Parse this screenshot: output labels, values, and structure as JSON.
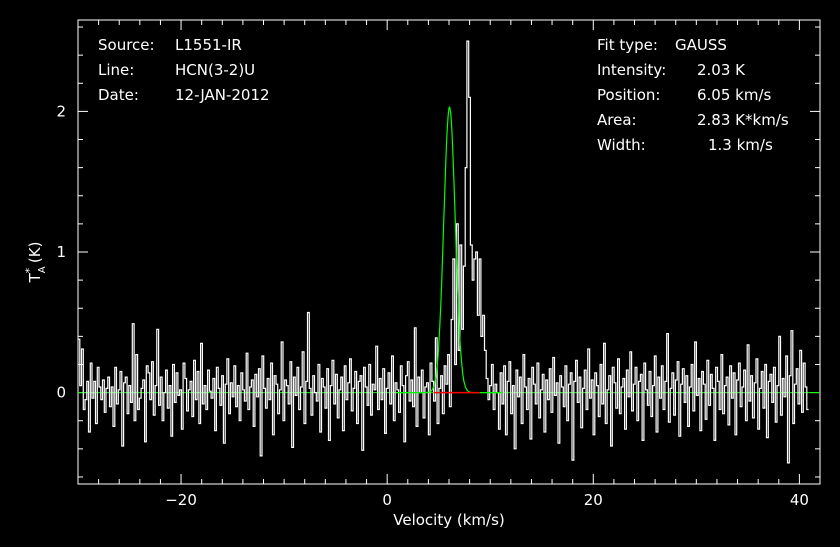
{
  "header_left": {
    "source_label": "Source:",
    "source_value": "L1551-IR",
    "line_label": "Line:",
    "line_value": "HCN(3-2)U",
    "date_label": "Date:",
    "date_value": "12-JAN-2012"
  },
  "header_right": {
    "fit_label": "Fit type:",
    "fit_value": "GAUSS",
    "intensity_label": "Intensity:",
    "intensity_value": "2.03 K",
    "position_label": "Position:",
    "position_value": "6.05 km/s",
    "area_label": "Area:",
    "area_value": "2.83 K*km/s",
    "width_label": "Width:",
    "width_value": "1.3 km/s"
  },
  "colors": {
    "background": "#000000",
    "axes": "#ffffff",
    "spectrum": "#ffffff",
    "fit": "#00ff00",
    "baseline": "#00ff00",
    "fit_window": "#ff0000"
  },
  "chart_data": {
    "type": "line",
    "xlabel": "Velocity (km/s)",
    "ylabel": "T_A^* (K)",
    "xlim": [
      -30,
      42
    ],
    "ylim": [
      -0.65,
      2.65
    ],
    "xticks": [
      -20,
      0,
      20,
      40
    ],
    "xtick_labels": [
      "−20",
      "0",
      "20",
      "40"
    ],
    "yticks": [
      0,
      1,
      2
    ],
    "ytick_labels": [
      "0",
      "1",
      "2"
    ],
    "x_minor_step": 2,
    "y_minor_step": 0.2,
    "grid": false,
    "series": [
      {
        "type": "step",
        "x_start": -30,
        "x_step": 0.17,
        "values": [
          0.38,
          0.05,
          0.31,
          -0.12,
          -0.05,
          0.08,
          -0.28,
          0.21,
          -0.04,
          0.08,
          -0.22,
          0.18,
          0.04,
          -0.05,
          0.09,
          -0.14,
          0.03,
          0.11,
          -0.1,
          0.04,
          -0.24,
          0.18,
          -0.08,
          0.02,
          0.15,
          -0.38,
          0.07,
          0.11,
          -0.15,
          0.05,
          -0.07,
          0.49,
          -0.2,
          0.27,
          -0.12,
          -0.04,
          0.03,
          0.09,
          -0.35,
          0.19,
          0.14,
          -0.05,
          0.22,
          -0.16,
          0.05,
          0.45,
          -0.09,
          0.11,
          -0.2,
          0.0,
          0.16,
          -0.11,
          0.05,
          -0.31,
          0.2,
          -0.07,
          0.14,
          -0.02,
          0.02,
          -0.26,
          0.21,
          0.1,
          -0.13,
          0.02,
          0.08,
          -0.17,
          0.23,
          -0.05,
          0.15,
          -0.22,
          0.35,
          -0.08,
          0.05,
          -0.12,
          0.16,
          0.01,
          -0.04,
          0.1,
          -0.27,
          0.18,
          0.03,
          -0.09,
          0.12,
          -0.36,
          0.06,
          0.24,
          -0.15,
          0.07,
          -0.03,
          0.19,
          -0.1,
          0.05,
          -0.2,
          0.14,
          0.02,
          -0.06,
          0.28,
          -0.12,
          0.04,
          0.09,
          -0.24,
          0.13,
          -0.03,
          0.17,
          -0.45,
          0.26,
          0.03,
          -0.11,
          0.1,
          -0.05,
          0.21,
          -0.3,
          0.12,
          0.06,
          -0.15,
          0.02,
          0.36,
          -0.2,
          0.09,
          0.05,
          -0.08,
          0.22,
          -0.39,
          0.11,
          -0.02,
          0.18,
          -0.12,
          0.04,
          0.29,
          -0.22,
          0.08,
          0.57,
          0.03,
          -0.16,
          0.12,
          0.0,
          -0.06,
          0.2,
          -0.28,
          0.1,
          0.04,
          -0.11,
          0.17,
          -0.34,
          0.05,
          0.23,
          -0.08,
          0.13,
          -0.18,
          0.02,
          0.11,
          -0.27,
          0.19,
          -0.05,
          0.07,
          0.24,
          -0.13,
          0.03,
          0.15,
          -0.22,
          0.08,
          0.12,
          -0.41,
          0.18,
          0.04,
          -0.09,
          0.2,
          -0.16,
          0.06,
          0.02,
          0.33,
          -0.12,
          0.1,
          -0.05,
          0.17,
          -0.29,
          0.03,
          0.14,
          -0.08,
          0.26,
          -0.2,
          0.07,
          0.02,
          -0.14,
          0.19,
          0.05,
          -0.35,
          0.12,
          0.22,
          -0.06,
          0.09,
          -0.1,
          0.46,
          -0.24,
          0.11,
          0.0,
          0.16,
          -0.18,
          0.04,
          0.07,
          -0.3,
          0.21,
          0.08,
          -0.06,
          0.39,
          -0.22,
          0.03,
          0.12,
          -0.15,
          0.19,
          0.06,
          0.27,
          -0.1,
          0.52,
          0.95,
          0.2,
          1.2,
          0.3,
          1.05,
          0.45,
          0.9,
          1.6,
          2.5,
          2.1,
          1.05,
          0.8,
          0.95,
          1.0,
          0.55,
          0.95,
          0.4,
          0.55,
          0.3,
          0.1,
          -0.05,
          0.05,
          0.2,
          -0.12,
          0.06,
          0.0,
          -0.26,
          0.14,
          -0.08,
          0.19,
          -0.3,
          0.08,
          0.22,
          -0.15,
          0.05,
          -0.4,
          0.16,
          -0.03,
          0.11,
          -0.22,
          0.27,
          0.04,
          -0.12,
          0.1,
          -0.33,
          0.18,
          0.06,
          -0.08,
          0.21,
          -0.18,
          0.02,
          0.13,
          -0.28,
          0.09,
          -0.05,
          0.17,
          -0.14,
          0.25,
          -0.02,
          0.07,
          -0.36,
          0.12,
          0.04,
          -0.1,
          0.19,
          -0.2,
          0.06,
          0.14,
          -0.48,
          0.08,
          0.23,
          -0.07,
          0.11,
          -0.25,
          0.03,
          0.16,
          -0.12,
          0.31,
          -0.04,
          0.09,
          -0.3,
          0.14,
          0.05,
          -0.17,
          0.2,
          -0.08,
          0.35,
          -0.22,
          0.02,
          0.12,
          -0.38,
          0.18,
          0.07,
          -0.11,
          0.24,
          -0.15,
          0.04,
          0.1,
          -0.26,
          0.16,
          -0.03,
          0.29,
          -0.13,
          0.06,
          0.18,
          -0.2,
          0.08,
          0.13,
          -0.34,
          0.21,
          0.02,
          -0.09,
          0.15,
          -0.17,
          0.05,
          0.26,
          -0.28,
          0.11,
          -0.04,
          0.19,
          -0.12,
          0.08,
          0.42,
          -0.21,
          0.03,
          0.14,
          -0.16,
          0.09,
          0.22,
          -0.31,
          0.06,
          0.17,
          -0.07,
          0.12,
          -0.24,
          0.04,
          0.2,
          -0.13,
          0.36,
          -0.02,
          0.1,
          -0.27,
          0.15,
          0.06,
          -0.19,
          0.23,
          -0.09,
          0.13,
          0.03,
          -0.34,
          0.18,
          0.08,
          -0.12,
          0.27,
          -0.15,
          0.05,
          0.11,
          -0.23,
          0.19,
          -0.04,
          0.14,
          -0.3,
          0.09,
          0.21,
          -0.1,
          0.04,
          0.16,
          -0.2,
          0.34,
          -0.06,
          0.12,
          -0.18,
          0.07,
          0.24,
          -0.26,
          0.03,
          0.15,
          -0.11,
          0.2,
          -0.32,
          0.08,
          0.13,
          -0.07,
          0.18,
          -0.21,
          0.05,
          0.4,
          -0.16,
          0.1,
          -0.03,
          0.26,
          -0.5,
          0.12,
          0.44,
          -0.22,
          0.06,
          0.17,
          -0.08,
          0.3,
          -0.14,
          0.21,
          0.04,
          -0.12
        ]
      },
      {
        "type": "gaussian_fit",
        "amplitude": 2.03,
        "center": 6.05,
        "fwhm": 1.3
      },
      {
        "type": "baseline",
        "y": 0
      },
      {
        "type": "fit_window",
        "x": [
          4.5,
          9.0
        ],
        "y": 0
      }
    ]
  }
}
